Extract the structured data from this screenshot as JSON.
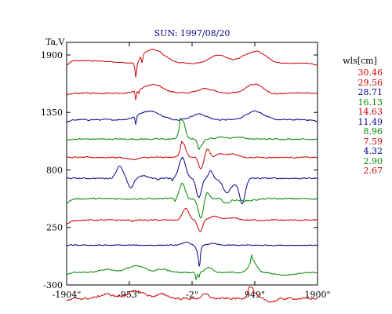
{
  "chart_data": {
    "type": "line",
    "title": "SUN: 1997/08/20",
    "ylabel": "Ta,V",
    "xlabel": "",
    "x_ticks": [
      "-1904\"",
      "-953\"",
      "-2\"",
      "949\"",
      "1900\""
    ],
    "x_tick_values": [
      -1904,
      -953,
      -2,
      949,
      1900
    ],
    "xlim": [
      -1904,
      1900
    ],
    "y_ticks": [
      "1900",
      "1350",
      "800",
      "250",
      "-300"
    ],
    "y_tick_values": [
      1900,
      1350,
      800,
      250,
      -300
    ],
    "ylim": [
      -300,
      2020
    ],
    "grid": false,
    "legend_title": "wls[cm]",
    "series": [
      {
        "name": "30.46",
        "color": "#cc0000",
        "baseline": 1820,
        "features": [
          [
            -1750,
            25,
            800
          ],
          [
            -600,
            130,
            240
          ],
          [
            400,
            80,
            180
          ],
          [
            750,
            30,
            150
          ],
          [
            980,
            110,
            200
          ],
          [
            -890,
            -25,
            160
          ],
          [
            -850,
            -55,
            40
          ],
          [
            -1904,
            -40,
            60
          ],
          [
            1900,
            -20,
            60
          ]
        ],
        "spikes": [
          [
            -855,
            -110
          ],
          [
            -760,
            -70
          ]
        ],
        "noise": 4
      },
      {
        "name": "29.56",
        "color": "#cc0000",
        "baseline": 1535,
        "features": [
          [
            -600,
            80,
            220
          ],
          [
            200,
            45,
            160
          ],
          [
            960,
            90,
            180
          ],
          [
            1200,
            -15,
            200
          ],
          [
            -1904,
            -20,
            80
          ]
        ],
        "spikes": [
          [
            -855,
            -85
          ],
          [
            -810,
            -35
          ]
        ],
        "noise": 5
      },
      {
        "name": "28.71",
        "color": "#00008b",
        "baseline": 1280,
        "features": [
          [
            -650,
            85,
            220
          ],
          [
            100,
            55,
            160
          ],
          [
            950,
            85,
            180
          ],
          [
            -1904,
            -20,
            80
          ],
          [
            1900,
            -15,
            80
          ]
        ],
        "spikes": [
          [
            -855,
            -80
          ]
        ],
        "noise": 5
      },
      {
        "name": "16.13",
        "color": "#008800",
        "baseline": 1095,
        "features": [
          [
            -150,
            180,
            60
          ],
          [
            120,
            -70,
            55
          ],
          [
            420,
            20,
            120
          ],
          [
            700,
            20,
            120
          ],
          [
            -1904,
            -10,
            80
          ]
        ],
        "spikes": [
          [
            -180,
            60
          ],
          [
            100,
            -40
          ]
        ],
        "noise": 5
      },
      {
        "name": "14.63",
        "color": "#cc0000",
        "baseline": 920,
        "features": [
          [
            -140,
            130,
            60
          ],
          [
            130,
            -110,
            50
          ],
          [
            230,
            80,
            45
          ],
          [
            420,
            35,
            100
          ],
          [
            620,
            35,
            100
          ],
          [
            -900,
            -20,
            120
          ]
        ],
        "spikes": [
          [
            -160,
            40
          ]
        ],
        "noise": 5
      },
      {
        "name": "11.49",
        "color": "#00008b",
        "baseline": 720,
        "features": [
          [
            -1100,
            120,
            70
          ],
          [
            -930,
            -95,
            60
          ],
          [
            -750,
            25,
            90
          ],
          [
            -150,
            200,
            70
          ],
          [
            100,
            -180,
            55
          ],
          [
            280,
            70,
            50
          ],
          [
            520,
            -65,
            60
          ],
          [
            760,
            -230,
            60
          ],
          [
            560,
            -80,
            150
          ]
        ],
        "spikes": [
          [
            -300,
            -20
          ],
          [
            -520,
            -15
          ]
        ],
        "noise": 5
      },
      {
        "name": "8.96",
        "color": "#008800",
        "baseline": 525,
        "features": [
          [
            -150,
            150,
            60
          ],
          [
            130,
            -190,
            55
          ],
          [
            220,
            60,
            50
          ],
          [
            520,
            -40,
            70
          ],
          [
            800,
            -20,
            200
          ],
          [
            -1904,
            -30,
            80
          ]
        ],
        "spikes": [
          [
            -260,
            -30
          ]
        ],
        "noise": 6
      },
      {
        "name": "7.59",
        "color": "#cc0000",
        "baseline": 320,
        "features": [
          [
            -100,
            110,
            70
          ],
          [
            120,
            -110,
            50
          ],
          [
            330,
            40,
            80
          ],
          [
            600,
            20,
            140
          ],
          [
            -1904,
            -35,
            80
          ]
        ],
        "spikes": [
          [
            -900,
            -15
          ]
        ],
        "noise": 5
      },
      {
        "name": "4.32",
        "color": "#00008b",
        "baseline": 80,
        "features": [
          [
            -100,
            30,
            70
          ],
          [
            100,
            -100,
            40
          ],
          [
            300,
            15,
            100
          ]
        ],
        "spikes": [
          [
            110,
            -120
          ]
        ],
        "noise": 4
      },
      {
        "name": "2.90",
        "color": "#008800",
        "baseline": -180,
        "features": [
          [
            -1300,
            30,
            150
          ],
          [
            -850,
            60,
            200
          ],
          [
            -450,
            30,
            120
          ],
          [
            250,
            50,
            80
          ],
          [
            920,
            110,
            80
          ],
          [
            1400,
            -25,
            200
          ],
          [
            -1904,
            -20,
            80
          ]
        ],
        "spikes": [
          [
            60,
            -70
          ],
          [
            100,
            -50
          ],
          [
            900,
            60
          ]
        ],
        "noise": 5
      },
      {
        "name": "2.67",
        "color": "#cc0000",
        "baseline": -430,
        "features": [
          [
            -1300,
            40,
            150
          ],
          [
            -850,
            70,
            200
          ],
          [
            -450,
            40,
            120
          ],
          [
            200,
            40,
            80
          ],
          [
            900,
            110,
            70
          ],
          [
            1200,
            -30,
            100
          ],
          [
            -1904,
            -20,
            80
          ]
        ],
        "spikes": [
          [
            860,
            40
          ],
          [
            940,
            -30
          ]
        ],
        "noise": 8
      }
    ]
  }
}
